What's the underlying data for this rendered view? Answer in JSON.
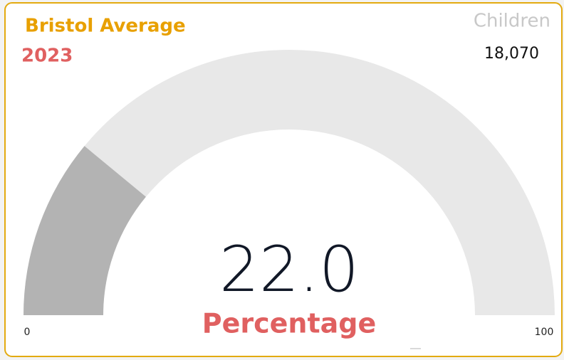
{
  "chart_data": {
    "type": "gauge",
    "title": "Bristol Average",
    "subtitle": "2023",
    "kpi": {
      "label": "Children",
      "value": "18,070"
    },
    "values": [
      22.0
    ],
    "value_labels": [
      "22.0"
    ],
    "value_caption": "Percentage",
    "ylim": [
      0,
      100
    ],
    "yticks": [
      0,
      100
    ],
    "color": "#b3b3b3",
    "track_color": "#e8e8e8"
  }
}
